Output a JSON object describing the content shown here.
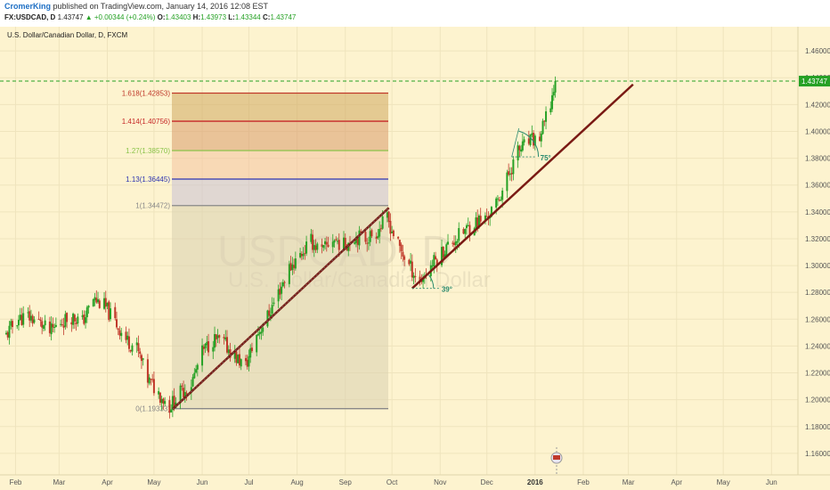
{
  "header": {
    "author": "CromerKing",
    "published": "published on TradingView.com, January 14, 2016 12:08 EST",
    "symbol": "FX:USDCAD, D",
    "last": "1.43747",
    "change": "▲ +0.00344 (+0.24%)",
    "o_label": "O:",
    "o_value": "1.43403",
    "h_label": "H:",
    "h_value": "1.43973",
    "l_label": "L:",
    "l_value": "1.43344",
    "c_label": "C:",
    "c_value": "1.43747"
  },
  "chart_data": {
    "type": "candlestick",
    "title": "U.S. Dollar/Canadian Dollar, D, FXCM",
    "watermark_symbol": "USDCAD, D",
    "watermark_name": "U.S. Dollar/Canadian Dollar",
    "ylim": [
      1.144,
      1.478
    ],
    "y_ticks": [
      "1.46000",
      "1.44000",
      "1.42000",
      "1.40000",
      "1.38000",
      "1.36000",
      "1.34000",
      "1.32000",
      "1.30000",
      "1.28000",
      "1.26000",
      "1.24000",
      "1.22000",
      "1.20000",
      "1.18000",
      "1.16000"
    ],
    "x_ticks": [
      "Feb",
      "Mar",
      "Apr",
      "May",
      "Jun",
      "Jul",
      "Aug",
      "Sep",
      "Oct",
      "Nov",
      "Dec",
      "2016",
      "Feb",
      "Mar",
      "Apr",
      "May",
      "Jun"
    ],
    "last_price_label": "1.43747",
    "last_price": 1.43747,
    "fib_levels": [
      {
        "ratio": "1.618",
        "price": "1.42853",
        "label": "1.618(1.42853)",
        "color": "#c0392b"
      },
      {
        "ratio": "1.414",
        "price": "1.40756",
        "label": "1.414(1.40756)",
        "color": "#c62828"
      },
      {
        "ratio": "1.27",
        "price": "1.38570",
        "label": "1.27(1.38570)",
        "color": "#8bc34a"
      },
      {
        "ratio": "1.13",
        "price": "1.36445",
        "label": "1.13(1.36445)",
        "color": "#2e35b0"
      },
      {
        "ratio": "1",
        "price": "1.34472",
        "label": "1(1.34472)",
        "color": "#888888"
      },
      {
        "ratio": "0",
        "price": "1.19333",
        "label": "0(1.19333)",
        "color": "#888888"
      }
    ],
    "angle_labels": [
      "39°",
      "75°"
    ],
    "price_path": [
      [
        "2015-01-26",
        1.248
      ],
      [
        "2015-02-02",
        1.26
      ],
      [
        "2015-02-09",
        1.262
      ],
      [
        "2015-02-16",
        1.258
      ],
      [
        "2015-02-23",
        1.25
      ],
      [
        "2015-03-02",
        1.258
      ],
      [
        "2015-03-09",
        1.262
      ],
      [
        "2015-03-16",
        1.258
      ],
      [
        "2015-03-23",
        1.275
      ],
      [
        "2015-03-30",
        1.27
      ],
      [
        "2015-04-06",
        1.258
      ],
      [
        "2015-04-13",
        1.245
      ],
      [
        "2015-04-20",
        1.238
      ],
      [
        "2015-04-27",
        1.215
      ],
      [
        "2015-05-04",
        1.205
      ],
      [
        "2015-05-11",
        1.195
      ],
      [
        "2015-05-18",
        1.205
      ],
      [
        "2015-05-25",
        1.212
      ],
      [
        "2015-06-01",
        1.235
      ],
      [
        "2015-06-08",
        1.245
      ],
      [
        "2015-06-15",
        1.242
      ],
      [
        "2015-06-22",
        1.232
      ],
      [
        "2015-06-29",
        1.225
      ],
      [
        "2015-07-06",
        1.248
      ],
      [
        "2015-07-13",
        1.262
      ],
      [
        "2015-07-20",
        1.28
      ],
      [
        "2015-07-27",
        1.298
      ],
      [
        "2015-08-03",
        1.308
      ],
      [
        "2015-08-10",
        1.318
      ],
      [
        "2015-08-17",
        1.31
      ],
      [
        "2015-08-24",
        1.32
      ],
      [
        "2015-08-31",
        1.315
      ],
      [
        "2015-09-07",
        1.322
      ],
      [
        "2015-09-14",
        1.32
      ],
      [
        "2015-09-21",
        1.325
      ],
      [
        "2015-09-28",
        1.335
      ],
      [
        "2015-10-05",
        1.315
      ],
      [
        "2015-10-12",
        1.3
      ],
      [
        "2015-10-19",
        1.288
      ],
      [
        "2015-10-26",
        1.3
      ],
      [
        "2015-11-02",
        1.31
      ],
      [
        "2015-11-09",
        1.318
      ],
      [
        "2015-11-16",
        1.325
      ],
      [
        "2015-11-23",
        1.332
      ],
      [
        "2015-11-30",
        1.335
      ],
      [
        "2015-12-07",
        1.345
      ],
      [
        "2015-12-14",
        1.365
      ],
      [
        "2015-12-21",
        1.385
      ],
      [
        "2015-12-28",
        1.392
      ],
      [
        "2016-01-04",
        1.395
      ],
      [
        "2016-01-11",
        1.42
      ],
      [
        "2016-01-14",
        1.43747
      ]
    ],
    "trendlines": [
      {
        "from": [
          "2015-05-13",
          1.193
        ],
        "to": [
          "2015-09-29",
          1.343
        ],
        "color": "#7a1a14"
      },
      {
        "from": [
          "2015-10-14",
          1.283
        ],
        "to": [
          "2016-03-04",
          1.435
        ],
        "color": "#7a1a14"
      }
    ]
  }
}
